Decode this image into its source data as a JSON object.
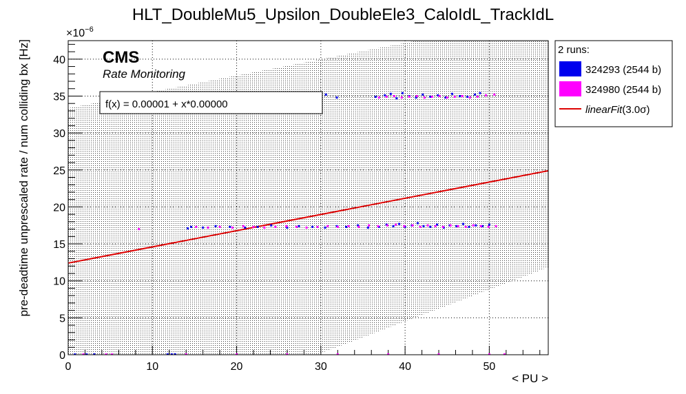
{
  "chart_data": {
    "type": "scatter",
    "title": "HLT_DoubleMu5_Upsilon_DoubleEle3_CaloIdL_TrackIdL",
    "xlabel": "< PU >",
    "ylabel": "pre-deadtime unprescaled rate / num colliding bx [Hz]",
    "y_multiplier_label": "×10",
    "y_multiplier_exponent": "−6",
    "xlim": [
      0,
      57
    ],
    "ylim": [
      0,
      42.5
    ],
    "x_ticks": [
      0,
      10,
      20,
      30,
      40,
      50
    ],
    "y_ticks": [
      0,
      5,
      10,
      15,
      20,
      25,
      30,
      35,
      40
    ],
    "grid": true,
    "legend_placement": "right-outside",
    "legend_header": "2 runs:",
    "cms_label": "CMS",
    "cms_sublabel": "Rate Monitoring",
    "fit_text": "f(x) = 0.00001 + x*0.00000",
    "fit": {
      "name": "linearFit(3.0σ)",
      "label_main": "linearFit",
      "label_suffix": "(3.0σ)",
      "color": "#dd0000",
      "x": [
        0,
        57
      ],
      "y": [
        12.4,
        24.9
      ]
    },
    "band": {
      "description_none": "",
      "lower": [
        [
          0,
          0
        ],
        [
          57,
          0
        ]
      ],
      "upper_x": [
        0,
        57
      ],
      "upper_y_lower_edge": [
        0.0,
        0.0
      ]
    },
    "series": [
      {
        "name": "324293 (2544 b)",
        "color": "#0000ee",
        "points": [
          [
            14.2,
            17.1
          ],
          [
            14.6,
            17.3
          ],
          [
            16.0,
            17.2
          ],
          [
            17.5,
            17.4
          ],
          [
            19.2,
            17.3
          ],
          [
            21.0,
            17.2
          ],
          [
            22.5,
            17.3
          ],
          [
            24.1,
            17.5
          ],
          [
            26.0,
            17.2
          ],
          [
            27.4,
            17.4
          ],
          [
            29.0,
            17.3
          ],
          [
            30.5,
            17.2
          ],
          [
            31.9,
            17.4
          ],
          [
            33.0,
            17.3
          ],
          [
            34.4,
            17.5
          ],
          [
            35.6,
            17.2
          ],
          [
            36.9,
            17.3
          ],
          [
            37.8,
            17.6
          ],
          [
            38.6,
            17.4
          ],
          [
            39.3,
            17.7
          ],
          [
            40.0,
            17.3
          ],
          [
            40.8,
            17.5
          ],
          [
            41.5,
            17.8
          ],
          [
            42.2,
            17.4
          ],
          [
            43.0,
            17.3
          ],
          [
            43.8,
            17.6
          ],
          [
            44.6,
            17.2
          ],
          [
            45.3,
            17.5
          ],
          [
            46.1,
            17.4
          ],
          [
            46.9,
            17.7
          ],
          [
            47.6,
            17.3
          ],
          [
            48.4,
            17.5
          ],
          [
            49.2,
            17.4
          ],
          [
            50.0,
            17.6
          ],
          [
            29.3,
            35.0
          ],
          [
            30.6,
            35.2
          ],
          [
            31.9,
            34.8
          ],
          [
            36.5,
            34.9
          ],
          [
            37.6,
            35.1
          ],
          [
            38.3,
            35.3
          ],
          [
            39.0,
            34.7
          ],
          [
            39.7,
            35.4
          ],
          [
            40.5,
            35.0
          ],
          [
            41.3,
            34.8
          ],
          [
            42.1,
            35.2
          ],
          [
            43.0,
            34.9
          ],
          [
            43.9,
            35.1
          ],
          [
            44.8,
            34.8
          ],
          [
            45.6,
            35.3
          ],
          [
            46.5,
            35.0
          ],
          [
            47.4,
            34.9
          ],
          [
            48.3,
            35.2
          ],
          [
            48.9,
            35.4
          ],
          [
            0.8,
            0.05
          ],
          [
            2.2,
            0.05
          ],
          [
            3.1,
            0.05
          ],
          [
            11.8,
            0.05
          ],
          [
            12.3,
            0.05
          ],
          [
            12.7,
            0.05
          ]
        ]
      },
      {
        "name": "324980 (2544 b)",
        "color": "#ff00ff",
        "points": [
          [
            8.4,
            17.0
          ],
          [
            15.2,
            17.3
          ],
          [
            16.6,
            17.2
          ],
          [
            18.0,
            17.3
          ],
          [
            19.5,
            17.2
          ],
          [
            20.8,
            17.4
          ],
          [
            22.0,
            17.3
          ],
          [
            23.3,
            17.2
          ],
          [
            24.6,
            17.3
          ],
          [
            25.9,
            17.4
          ],
          [
            27.1,
            17.3
          ],
          [
            28.3,
            17.2
          ],
          [
            29.6,
            17.3
          ],
          [
            30.8,
            17.4
          ],
          [
            32.0,
            17.3
          ],
          [
            33.3,
            17.4
          ],
          [
            34.5,
            17.3
          ],
          [
            35.7,
            17.5
          ],
          [
            36.8,
            17.4
          ],
          [
            37.9,
            17.5
          ],
          [
            38.9,
            17.6
          ],
          [
            39.9,
            17.4
          ],
          [
            40.9,
            17.5
          ],
          [
            41.8,
            17.3
          ],
          [
            42.7,
            17.5
          ],
          [
            43.6,
            17.4
          ],
          [
            44.5,
            17.3
          ],
          [
            45.4,
            17.5
          ],
          [
            46.3,
            17.4
          ],
          [
            47.2,
            17.3
          ],
          [
            48.1,
            17.5
          ],
          [
            49.0,
            17.4
          ],
          [
            49.9,
            17.3
          ],
          [
            50.8,
            17.4
          ],
          [
            36.9,
            34.8
          ],
          [
            37.8,
            34.9
          ],
          [
            38.7,
            35.0
          ],
          [
            39.6,
            34.8
          ],
          [
            40.5,
            34.9
          ],
          [
            41.4,
            35.0
          ],
          [
            42.3,
            34.8
          ],
          [
            43.2,
            34.9
          ],
          [
            44.1,
            35.0
          ],
          [
            45.0,
            34.8
          ],
          [
            45.9,
            34.9
          ],
          [
            46.8,
            35.0
          ],
          [
            47.7,
            34.8
          ],
          [
            48.6,
            34.9
          ],
          [
            49.6,
            35.1
          ],
          [
            50.6,
            35.2
          ],
          [
            1.8,
            0.05
          ],
          [
            4.5,
            0.05
          ],
          [
            5.2,
            0.05
          ],
          [
            14.0,
            0.05
          ],
          [
            20.0,
            0.05
          ],
          [
            26.0,
            0.05
          ],
          [
            32.0,
            0.05
          ],
          [
            38.0,
            0.05
          ],
          [
            44.0,
            0.05
          ],
          [
            50.0,
            0.05
          ],
          [
            51.8,
            0.05
          ]
        ]
      }
    ]
  }
}
